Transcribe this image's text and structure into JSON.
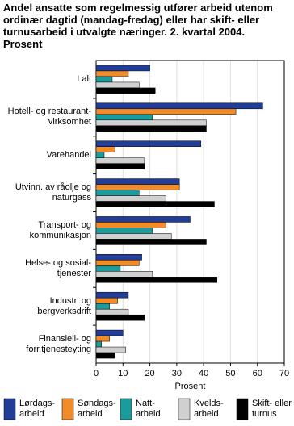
{
  "chart_data": {
    "type": "hbar",
    "title": "Andel ansatte som regelmessig utfører arbeid utenom\nordinær dagtid (mandag-fredag) eller har skift- eller\nturnusarbeid i utvalgte næringer. 2. kvartal 2004.\nProsent",
    "categories": [
      "I alt",
      "Hotell- og restaurant-\nvirksomhet",
      "Varehandel",
      "Utvinn. av råolje og\nnaturgass",
      "Transport- og\nkommunikasjon",
      "Helse- og sosial-\ntjenester",
      "Industri og\nbergverksdrift",
      "Finansiell- og\nforr.tjenesteyting"
    ],
    "series": [
      {
        "name": "Lørdags-\narbeid",
        "color": "#1f3d99",
        "values": [
          20,
          62,
          39,
          31,
          35,
          17,
          12,
          10
        ]
      },
      {
        "name": "Søndags-\narbeid",
        "color": "#f28c28",
        "values": [
          12,
          52,
          7,
          31,
          26,
          16,
          8,
          5
        ]
      },
      {
        "name": "Natt-\narbeid",
        "color": "#1a9c9c",
        "values": [
          6,
          21,
          3,
          16,
          21,
          9,
          5,
          2
        ]
      },
      {
        "name": "Kvelds-\narbeid",
        "color": "#d0d0d0",
        "values": [
          16,
          41,
          18,
          26,
          28,
          21,
          12,
          11
        ]
      },
      {
        "name": "Skift- eller\nturnus",
        "color": "#000000",
        "values": [
          22,
          41,
          18,
          44,
          41,
          45,
          18,
          7
        ]
      }
    ],
    "xlabel": "Prosent",
    "xlim": [
      0,
      70
    ],
    "xticks": [
      0,
      10,
      20,
      30,
      40,
      50,
      60,
      70
    ],
    "grid": true
  }
}
